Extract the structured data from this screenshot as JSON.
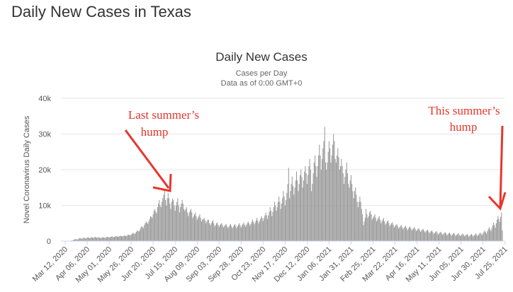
{
  "page": {
    "heading": "Daily New Cases in Texas"
  },
  "chart_data": {
    "type": "bar",
    "title": "Daily New Cases",
    "subtitle_lines": [
      "Cases per Day",
      "Data as of 0:00 GMT+0"
    ],
    "ylabel": "Novel Coronavirus Daily Cases",
    "xlabel": "",
    "ylim": [
      0,
      40000
    ],
    "yticks": [
      0,
      10000,
      20000,
      30000,
      40000
    ],
    "ytick_labels": [
      "0",
      "10k",
      "20k",
      "30k",
      "40k"
    ],
    "grid": true,
    "legend": "none",
    "bar_color": "#9a9a9a",
    "start_date": "Mar 12, 2020",
    "xtick_labels": [
      "Mar 12, 2020",
      "Apr 06, 2020",
      "May 01, 2020",
      "May 26, 2020",
      "Jun 20, 2020",
      "Jul 15, 2020",
      "Aug 09, 2020",
      "Sep 03, 2020",
      "Sep 28, 2020",
      "Oct 23, 2020",
      "Nov 17, 2020",
      "Dec 12, 2020",
      "Jan 06, 2021",
      "Jan 31, 2021",
      "Feb 25, 2021",
      "Mar 22, 2021",
      "Apr 16, 2021",
      "May 11, 2021",
      "Jun 05, 2021",
      "Jun 30, 2021",
      "Jul 25, 2021"
    ],
    "series": [
      {
        "values": [
          0,
          0,
          0,
          0,
          0,
          50,
          100,
          150,
          200,
          300,
          400,
          500,
          600,
          500,
          400,
          600,
          800,
          900,
          700,
          600,
          800,
          1000,
          900,
          700,
          800,
          1000,
          1100,
          900,
          800,
          1000,
          1100,
          1000,
          900,
          1000,
          1200,
          1100,
          900,
          1000,
          1100,
          1000,
          800,
          900,
          1000,
          1100,
          1000,
          900,
          1000,
          1100,
          1200,
          1100,
          1000,
          1100,
          1200,
          1300,
          1200,
          1100,
          1200,
          1300,
          1400,
          1300,
          1200,
          1300,
          1400,
          1500,
          1400,
          1300,
          1400,
          1600,
          1500,
          1400,
          1500,
          1700,
          1800,
          1700,
          1600,
          1800,
          2000,
          2300,
          2200,
          2000,
          2300,
          2600,
          3000,
          2800,
          2700,
          3200,
          3800,
          4200,
          4000,
          3600,
          4500,
          5000,
          5500,
          5200,
          4800,
          5600,
          6200,
          7000,
          6800,
          6500,
          7500,
          8500,
          9000,
          8200,
          7800,
          9500,
          10500,
          11500,
          10000,
          9500,
          11000,
          12000,
          13000,
          14500,
          11500,
          10000,
          12000,
          13500,
          12000,
          10500,
          9000,
          11000,
          12000,
          11500,
          10000,
          8500,
          10000,
          11000,
          12000,
          10000,
          8000,
          9500,
          10500,
          11500,
          10500,
          9000,
          8500,
          9000,
          9500,
          8000,
          7000,
          8000,
          8500,
          9000,
          8000,
          6500,
          7000,
          7500,
          8000,
          7000,
          6000,
          6500,
          7000,
          7500,
          6500,
          5500,
          6000,
          6200,
          6500,
          5800,
          5000,
          5500,
          6000,
          6000,
          5000,
          4500,
          5000,
          5500,
          5800,
          5000,
          4200,
          4500,
          5000,
          5200,
          4500,
          4000,
          4500,
          4800,
          5000,
          4400,
          3800,
          4200,
          4500,
          4800,
          4200,
          3600,
          4000,
          4500,
          4800,
          4200,
          3600,
          4000,
          4500,
          4800,
          4200,
          3700,
          4200,
          4600,
          5000,
          4400,
          3800,
          4300,
          4800,
          5200,
          4600,
          4000,
          4500,
          5000,
          5500,
          5000,
          4300,
          4800,
          5400,
          6000,
          5400,
          4700,
          5200,
          5800,
          6500,
          5800,
          5000,
          5600,
          6200,
          7000,
          6500,
          5600,
          6400,
          7200,
          8000,
          7200,
          6200,
          7200,
          8200,
          9500,
          8500,
          7000,
          8200,
          9500,
          11000,
          10000,
          8500,
          9500,
          11000,
          12500,
          11000,
          9000,
          10500,
          12000,
          14000,
          12500,
          10000,
          11500,
          13500,
          16000,
          20500,
          12000,
          14000,
          16000,
          18000,
          15500,
          13000,
          15000,
          17000,
          19500,
          17000,
          14000,
          16000,
          18500,
          20000,
          18000,
          15000,
          17000,
          19500,
          21000,
          19000,
          16000,
          18500,
          21000,
          23000,
          20000,
          14000,
          16000,
          19000,
          22000,
          24000,
          21000,
          18000,
          21000,
          24000,
          27000,
          24000,
          20000,
          23000,
          26000,
          28000,
          32000,
          22000,
          20000,
          22000,
          25000,
          28000,
          26000,
          22000,
          24000,
          27000,
          30000,
          28000,
          23000,
          22000,
          24000,
          26000,
          23500,
          20000,
          21000,
          23000,
          21000,
          19000,
          16000,
          18000,
          20000,
          22000,
          19000,
          16000,
          15000,
          17000,
          18500,
          16000,
          14000,
          12000,
          14000,
          15000,
          13000,
          11000,
          9500,
          11000,
          12500,
          11000,
          9000,
          7500,
          4500,
          5500,
          6500,
          9000,
          7500,
          6500,
          7000,
          8000,
          8500,
          7500,
          6000,
          6500,
          7000,
          7500,
          6500,
          5500,
          6000,
          6500,
          7000,
          6000,
          5000,
          5500,
          6000,
          6500,
          5500,
          4600,
          5000,
          5500,
          5800,
          5000,
          4200,
          4600,
          5000,
          5300,
          4600,
          3800,
          4200,
          4500,
          4800,
          4200,
          3500,
          3800,
          4200,
          4500,
          3900,
          3300,
          3700,
          4000,
          4300,
          3700,
          3100,
          3500,
          3800,
          4100,
          3600,
          3000,
          3300,
          3600,
          3900,
          3400,
          2800,
          3100,
          3400,
          3600,
          3100,
          2600,
          2900,
          3200,
          3400,
          2900,
          2400,
          2700,
          3000,
          3200,
          2700,
          2200,
          2500,
          2800,
          3000,
          2500,
          2000,
          2300,
          2600,
          2800,
          2300,
          1800,
          2100,
          2400,
          2600,
          2200,
          1700,
          2000,
          2300,
          2500,
          2100,
          1600,
          1900,
          2200,
          2400,
          2000,
          1500,
          1800,
          2100,
          2300,
          1900,
          1400,
          1700,
          2000,
          2200,
          1800,
          1400,
          1600,
          1900,
          2100,
          1700,
          1300,
          1600,
          1800,
          2000,
          1600,
          1200,
          1500,
          1800,
          2000,
          1600,
          1300,
          1600,
          1900,
          2100,
          1700,
          1400,
          1800,
          2100,
          2400,
          2000,
          1700,
          2200,
          2600,
          3000,
          2500,
          2100,
          2800,
          3400,
          3900,
          3300,
          2800,
          3600,
          4400,
          5200,
          4500,
          3800,
          5000,
          6000,
          7000,
          6200,
          5400,
          6800,
          8000,
          3000
        ]
      }
    ],
    "annotations": [
      {
        "lines": [
          "Last summer’s",
          "hump"
        ],
        "color": "#e8362d"
      },
      {
        "lines": [
          "This summer’s",
          "hump"
        ],
        "color": "#e8362d"
      }
    ]
  }
}
